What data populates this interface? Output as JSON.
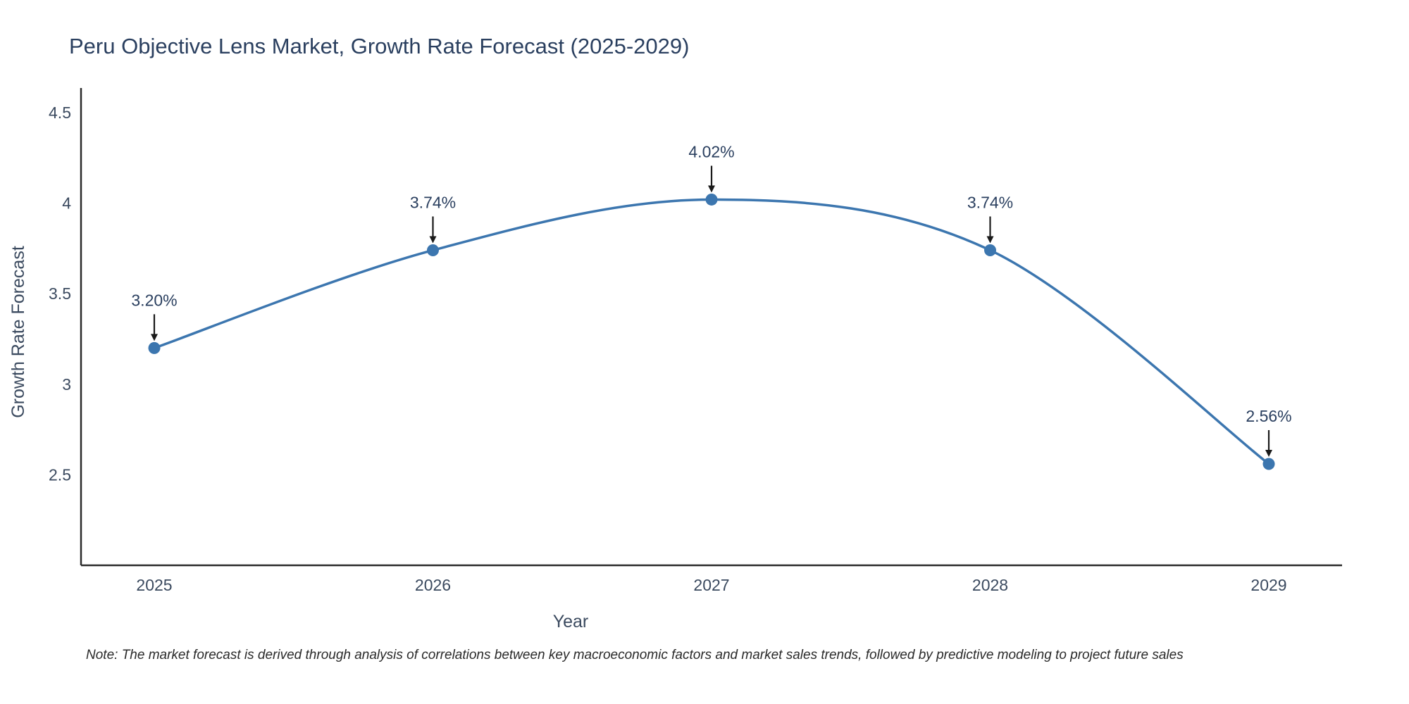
{
  "chart_data": {
    "type": "line",
    "title": "Peru Objective Lens Market, Growth Rate Forecast (2025-2029)",
    "xlabel": "Year",
    "ylabel": "Growth Rate Forecast",
    "x": [
      2025,
      2026,
      2027,
      2028,
      2029
    ],
    "values": [
      3.2,
      3.74,
      4.02,
      3.74,
      2.56
    ],
    "point_labels": [
      "3.20%",
      "3.74%",
      "4.02%",
      "3.74%",
      "2.56%"
    ],
    "x_tick_labels": [
      "2025",
      "2026",
      "2027",
      "2028",
      "2029"
    ],
    "y_tick_labels": [
      "2.5",
      "3",
      "3.5",
      "4",
      "4.5"
    ],
    "y_tick_values": [
      2.5,
      3,
      3.5,
      4,
      4.5
    ],
    "ylim": [
      2.0,
      4.5
    ],
    "grid": false,
    "legend": "none",
    "line_color": "#3c76af",
    "marker_color": "#3c76af",
    "axis_color": "#2a2a2a",
    "tick_color": "#3b4a5f",
    "annotation_color": "#2a3f5f"
  },
  "note": "Note: The market forecast is derived through analysis of correlations between key macroeconomic factors and market sales trends, followed by predictive modeling to project future sales"
}
